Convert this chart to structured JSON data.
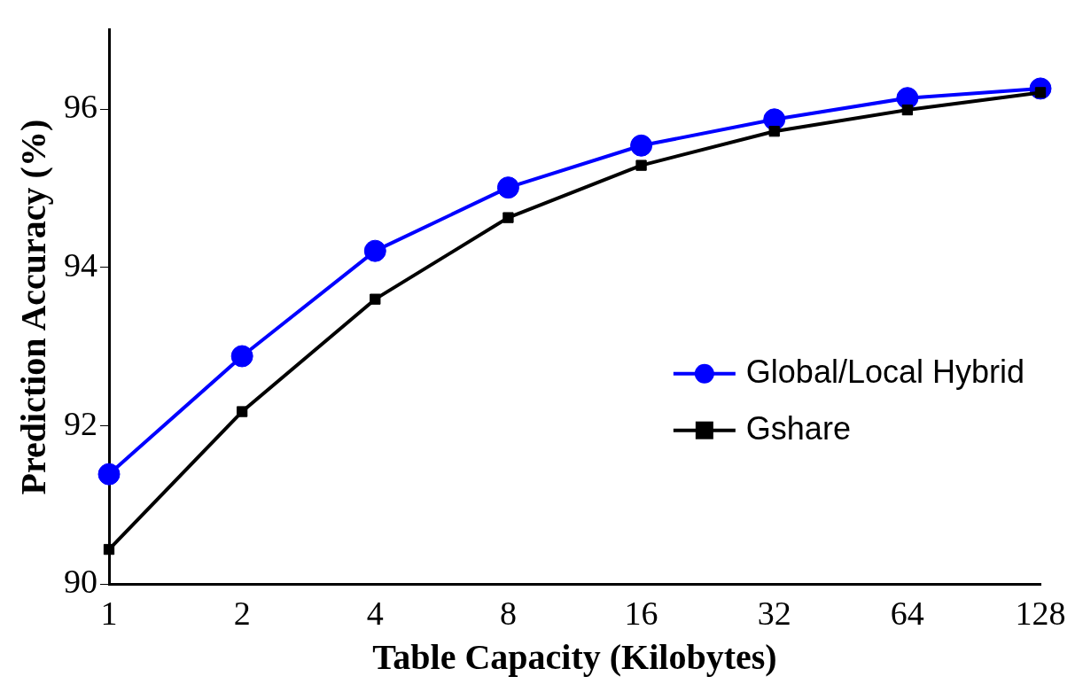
{
  "chart_data": {
    "type": "line",
    "xlabel": "Table Capacity (Kilobytes)",
    "ylabel": "Prediction Accuracy (%)",
    "categories": [
      "1",
      "2",
      "4",
      "8",
      "16",
      "32",
      "64",
      "128"
    ],
    "series": [
      {
        "name": "Global/Local Hybrid",
        "color": "#0000ff",
        "marker": "circle",
        "values": [
          91.39,
          92.88,
          94.21,
          95.01,
          95.54,
          95.87,
          96.14,
          96.26
        ]
      },
      {
        "name": "Gshare",
        "color": "#000000",
        "marker": "square",
        "values": [
          90.44,
          92.18,
          93.6,
          94.63,
          95.29,
          95.72,
          95.99,
          96.21
        ]
      }
    ],
    "ylim": [
      90,
      97
    ],
    "yticks": [
      90,
      92,
      94,
      96
    ],
    "grid": false,
    "legend": "right",
    "line_style": "solid"
  }
}
